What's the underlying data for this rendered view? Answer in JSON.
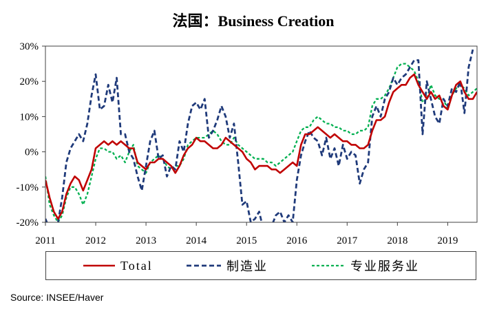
{
  "source": "Source: INSEE/Haver",
  "chart_data": {
    "type": "line",
    "title": "法国：Business Creation",
    "ylim": [
      -20,
      30
    ],
    "yticks": [
      30,
      20,
      10,
      0,
      -10,
      -20
    ],
    "ytick_labels": [
      "30%",
      "20%",
      "10%",
      "0%",
      "-10%",
      "-20%"
    ],
    "xlim": [
      "2011-01",
      "2019-08"
    ],
    "xticks": [
      "2011-01",
      "2012-01",
      "2013-01",
      "2014-01",
      "2015-01",
      "2016-01",
      "2017-01",
      "2018-01",
      "2019-01"
    ],
    "xtick_labels": [
      "2011",
      "2012",
      "2013",
      "2014",
      "2015",
      "2016",
      "2017",
      "2018",
      "2019"
    ],
    "grid": false,
    "legend": "bottom",
    "x": [
      "2011-01",
      "2011-02",
      "2011-03",
      "2011-04",
      "2011-05",
      "2011-06",
      "2011-07",
      "2011-08",
      "2011-09",
      "2011-10",
      "2011-11",
      "2011-12",
      "2012-01",
      "2012-02",
      "2012-03",
      "2012-04",
      "2012-05",
      "2012-06",
      "2012-07",
      "2012-08",
      "2012-09",
      "2012-10",
      "2012-11",
      "2012-12",
      "2013-01",
      "2013-02",
      "2013-03",
      "2013-04",
      "2013-05",
      "2013-06",
      "2013-07",
      "2013-08",
      "2013-09",
      "2013-10",
      "2013-11",
      "2013-12",
      "2014-01",
      "2014-02",
      "2014-03",
      "2014-04",
      "2014-05",
      "2014-06",
      "2014-07",
      "2014-08",
      "2014-09",
      "2014-10",
      "2014-11",
      "2014-12",
      "2015-01",
      "2015-02",
      "2015-03",
      "2015-04",
      "2015-05",
      "2015-06",
      "2015-07",
      "2015-08",
      "2015-09",
      "2015-10",
      "2015-11",
      "2015-12",
      "2016-01",
      "2016-02",
      "2016-03",
      "2016-04",
      "2016-05",
      "2016-06",
      "2016-07",
      "2016-08",
      "2016-09",
      "2016-10",
      "2016-11",
      "2016-12",
      "2017-01",
      "2017-02",
      "2017-03",
      "2017-04",
      "2017-05",
      "2017-06",
      "2017-07",
      "2017-08",
      "2017-09",
      "2017-10",
      "2017-11",
      "2017-12",
      "2018-01",
      "2018-02",
      "2018-03",
      "2018-04",
      "2018-05",
      "2018-06",
      "2018-07",
      "2018-08",
      "2018-09",
      "2018-10",
      "2018-11",
      "2018-12",
      "2019-01",
      "2019-02",
      "2019-03",
      "2019-04",
      "2019-05",
      "2019-06",
      "2019-07",
      "2019-08"
    ],
    "series": [
      {
        "name": "Total",
        "color": "#C00000",
        "style": "solid",
        "values": [
          -8,
          -13,
          -17,
          -19,
          -17,
          -12,
          -9,
          -7,
          -8,
          -11,
          -8,
          -5,
          1,
          2,
          3,
          2,
          3,
          2,
          3,
          2,
          1,
          1,
          -3,
          -4,
          -5,
          -3,
          -3,
          -2,
          -2,
          -3,
          -4,
          -6,
          -4,
          -1,
          1,
          2,
          4,
          3,
          3,
          2,
          1,
          1,
          2,
          4,
          3,
          2,
          1,
          0,
          -2,
          -3,
          -5,
          -4,
          -4,
          -4,
          -5,
          -5,
          -6,
          -5,
          -4,
          -3,
          -4,
          2,
          5,
          5,
          6,
          7,
          6,
          5,
          4,
          5,
          4,
          3,
          3,
          2,
          2,
          1,
          1,
          2,
          6,
          9,
          9,
          10,
          14,
          17,
          18,
          19,
          19,
          21,
          22,
          19,
          17,
          15,
          17,
          15,
          16,
          13,
          12,
          16,
          19,
          20,
          17,
          15,
          15,
          17
        ]
      },
      {
        "name": "制造业",
        "color": "#1F3A7A",
        "style": "dashed",
        "values": [
          -19,
          -22,
          -21,
          -20,
          -13,
          -3,
          1,
          3,
          5,
          3,
          8,
          16,
          22,
          12,
          13,
          19,
          14,
          21,
          5,
          5,
          0,
          -2,
          -7,
          -11,
          -4,
          3,
          6,
          -2,
          -1,
          -7,
          -4,
          -5,
          3,
          0,
          8,
          13,
          14,
          12,
          15,
          4,
          6,
          9,
          13,
          10,
          4,
          8,
          -3,
          -15,
          -14,
          -20,
          -19,
          -17,
          -22,
          -20,
          -21,
          -18,
          -17,
          -20,
          -18,
          -20,
          -8,
          -1,
          3,
          6,
          4,
          3,
          -1,
          4,
          -2,
          1,
          -4,
          2,
          -2,
          0,
          -1,
          -9,
          -5,
          -3,
          10,
          13,
          10,
          15,
          17,
          21,
          19,
          21,
          22,
          24,
          26,
          26,
          5,
          20,
          15,
          10,
          8,
          15,
          13,
          18,
          17,
          20,
          11,
          24,
          29,
          null
        ]
      },
      {
        "name": "专业服务业",
        "color": "#00B050",
        "style": "dashed",
        "values": [
          -7,
          -15,
          -18,
          -20,
          -18,
          -13,
          -10,
          -10,
          -12,
          -15,
          -12,
          -7,
          -2,
          1,
          1,
          0,
          0,
          -2,
          -1,
          -3,
          0,
          2,
          -4,
          -5,
          -6,
          -3,
          -2,
          -1,
          -2,
          -4,
          -5,
          -4,
          -4,
          -2,
          2,
          3,
          4,
          4,
          4,
          5,
          6,
          5,
          3,
          2,
          2,
          4,
          2,
          1,
          0,
          -1,
          -2,
          -2,
          -2,
          -3,
          -3,
          -4,
          -3,
          -2,
          -1,
          0,
          3,
          6,
          7,
          7,
          9,
          10,
          9,
          8,
          8,
          7,
          7,
          6,
          6,
          5,
          5,
          6,
          6,
          7,
          13,
          15,
          15,
          16,
          18,
          21,
          24,
          25,
          25,
          24,
          23,
          20,
          14,
          15,
          19,
          16,
          15,
          15,
          12,
          16,
          18,
          19,
          18,
          16,
          17,
          18
        ]
      }
    ]
  }
}
